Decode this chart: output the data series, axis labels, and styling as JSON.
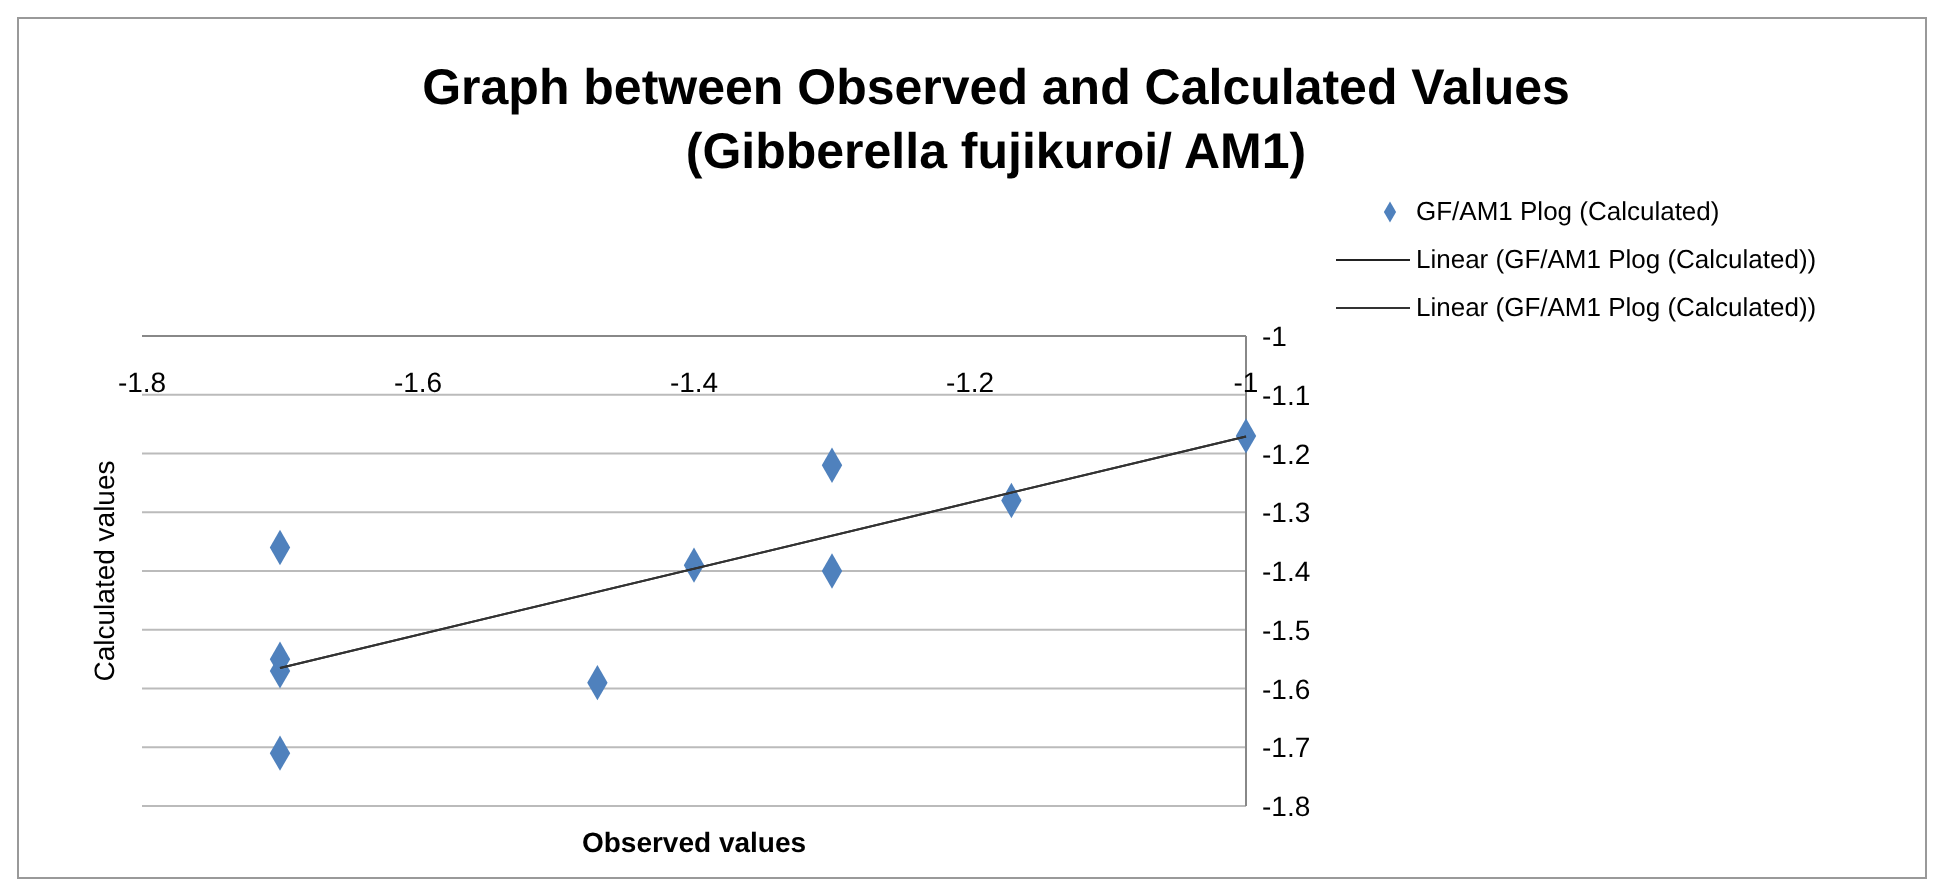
{
  "chart_data": {
    "type": "scatter",
    "title": "Graph between Observed and Calculated Values\n(Gibberella fujikuroi/ AM1)",
    "xlabel": "Observed values",
    "ylabel": "Calculated values",
    "marker": "diamond",
    "grid": "y",
    "legend": "right",
    "xlim": [
      -1.8,
      -1
    ],
    "xticks": [
      -1.8,
      -1.6,
      -1.4,
      -1.2,
      -1
    ],
    "ylim": [
      -1.8,
      -1
    ],
    "yticks": [
      -1,
      -1.1,
      -1.2,
      -1.3,
      -1.4,
      -1.5,
      -1.6,
      -1.7,
      -1.8
    ],
    "series": [
      {
        "name": "GF/AM1 Plog (Calculated)",
        "color": "#4f81bd",
        "x": [
          -1.7,
          -1.7,
          -1.7,
          -1.7,
          -1.47,
          -1.4,
          -1.3,
          -1.3,
          -1.17,
          -1.0
        ],
        "values": [
          -1.36,
          -1.55,
          -1.57,
          -1.71,
          -1.59,
          -1.39,
          -1.22,
          -1.4,
          -1.28,
          -1.17
        ]
      },
      {
        "name": "Linear (GF/AM1 Plog (Calculated))",
        "type": "line",
        "marker": "none",
        "color": "#222222",
        "x": [
          -1.7,
          -1.0
        ],
        "values": [
          -1.565,
          -1.171
        ]
      },
      {
        "name": "Linear (GF/AM1 Plog (Calculated))",
        "type": "line",
        "marker": "none",
        "color": "#333333",
        "x": [
          -1.7,
          -1.0
        ],
        "values": [
          -1.565,
          -1.171
        ]
      }
    ]
  }
}
